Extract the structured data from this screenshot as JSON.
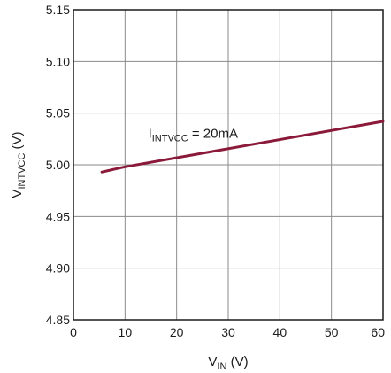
{
  "chart_data": {
    "type": "line",
    "xlabel": "V",
    "xlabel_sub": "IN",
    "xlabel_unit": " (V)",
    "ylabel": "V",
    "ylabel_sub": "INTVCC",
    "ylabel_unit": " (V)",
    "xlim": [
      0,
      60
    ],
    "ylim": [
      4.85,
      5.15
    ],
    "xticks": [
      0,
      10,
      20,
      30,
      40,
      50,
      60
    ],
    "xtick_labels": [
      "0",
      "10",
      "20",
      "30",
      "40",
      "50",
      "60"
    ],
    "yticks": [
      4.85,
      4.9,
      4.95,
      5.0,
      5.05,
      5.1,
      5.15
    ],
    "ytick_labels": [
      "4.85",
      "4.90",
      "4.95",
      "5.00",
      "5.05",
      "5.10",
      "5.15"
    ],
    "grid": true,
    "series": [
      {
        "color": "#8b1a3a",
        "x": [
          5.5,
          10,
          60
        ],
        "y": [
          4.993,
          4.998,
          5.042
        ]
      }
    ],
    "annotation": {
      "text": "I",
      "sub": "INTVCC",
      "rest": " = 20mA",
      "x": 14.5,
      "y": 5.026
    }
  }
}
